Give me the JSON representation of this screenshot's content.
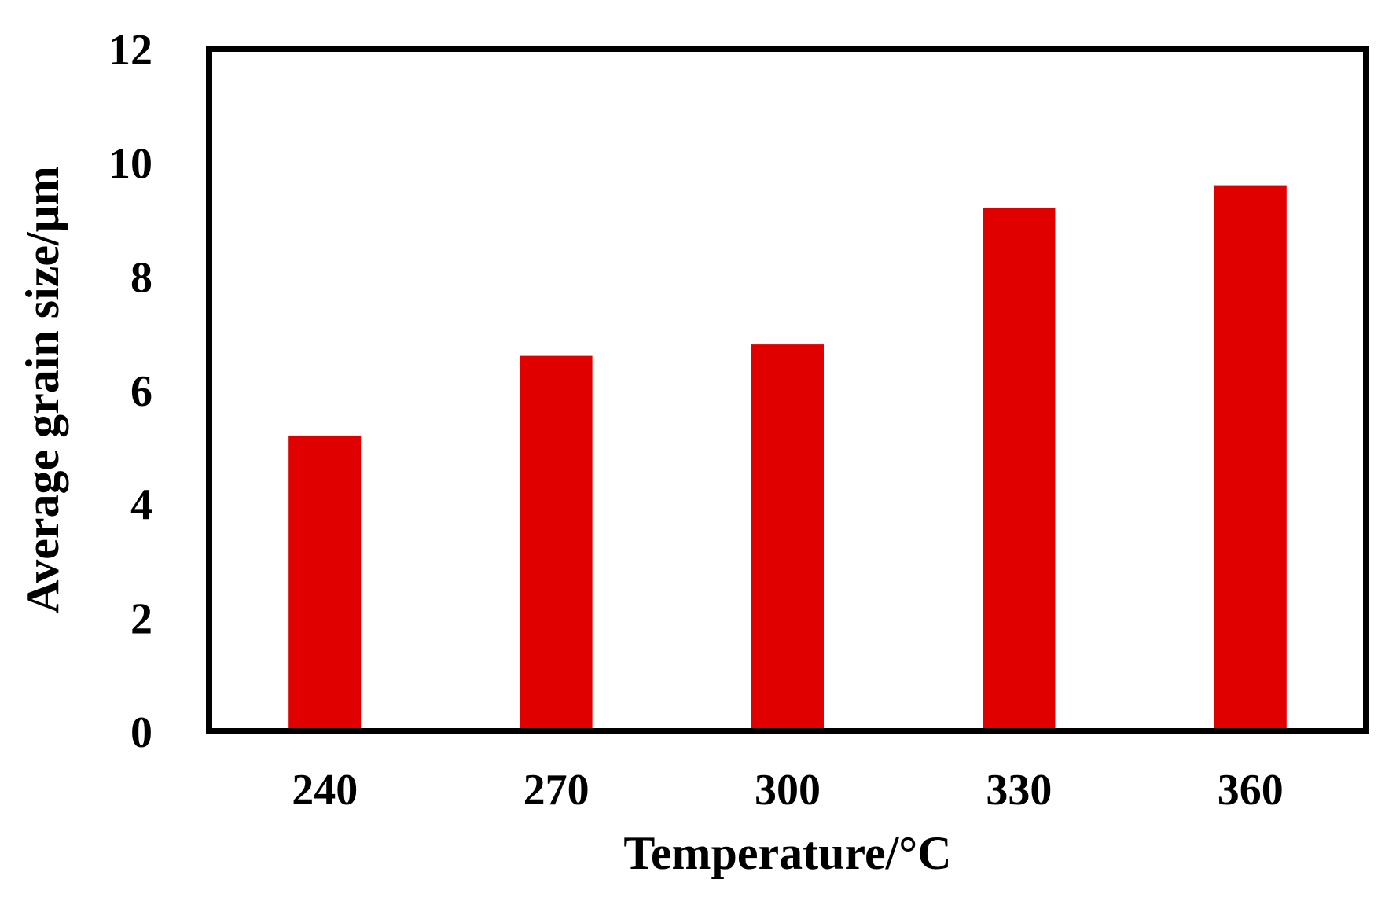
{
  "chart_data": {
    "type": "bar",
    "categories": [
      "240",
      "270",
      "300",
      "330",
      "360"
    ],
    "values": [
      5.2,
      6.6,
      6.8,
      9.2,
      9.6
    ],
    "title": "",
    "xlabel": "Temperature/°C",
    "ylabel": "Average grain size/μm",
    "ylim": [
      0,
      12
    ],
    "yticks": [
      "0",
      "2",
      "4",
      "6",
      "8",
      "10",
      "12"
    ],
    "grid": false,
    "legend": "none",
    "bar_color": "#e00000",
    "frame_color": "#000000"
  }
}
